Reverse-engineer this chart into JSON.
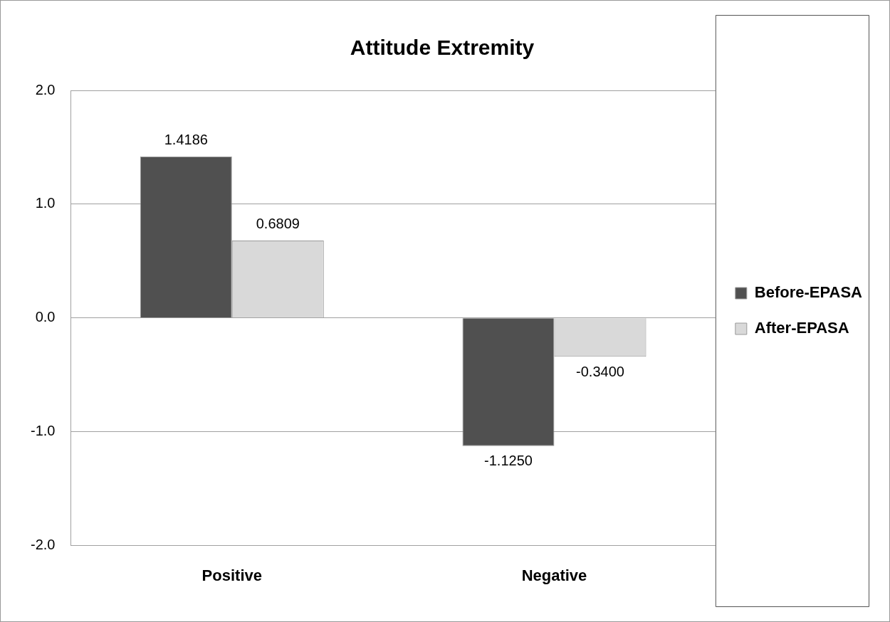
{
  "chart_data": {
    "type": "bar",
    "title": "Attitude Extremity",
    "categories": [
      "Positive",
      "Negative"
    ],
    "series": [
      {
        "name": "Before-EPASA",
        "color": "#505050",
        "values": [
          1.4186,
          -1.125
        ],
        "value_labels": [
          "1.4186",
          "-1.1250"
        ]
      },
      {
        "name": "After-EPASA",
        "color": "#d9d9d9",
        "values": [
          0.6809,
          -0.34
        ],
        "value_labels": [
          "0.6809",
          "-0.3400"
        ]
      }
    ],
    "ylim": [
      -2,
      2
    ],
    "yticks": [
      {
        "value": -2,
        "label": "-2.0"
      },
      {
        "value": -1,
        "label": "-1.0"
      },
      {
        "value": 0,
        "label": "0.0"
      },
      {
        "value": 1,
        "label": "1.0"
      },
      {
        "value": 2,
        "label": "2.0"
      }
    ],
    "grid": "y",
    "legend": "right"
  }
}
